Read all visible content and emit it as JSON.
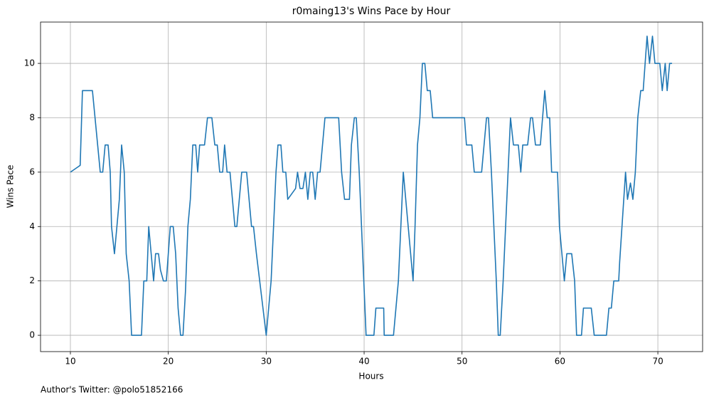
{
  "chart_data": {
    "type": "line",
    "title": "r0maing13's Wins Pace by Hour",
    "xlabel": "Hours",
    "ylabel": "Wins Pace",
    "annotation": "Author's Twitter: @polo51852166",
    "grid": true,
    "xlim": [
      6.95,
      74.57
    ],
    "ylim": [
      -0.6,
      11.52
    ],
    "xticks": [
      10,
      20,
      30,
      40,
      50,
      60,
      70
    ],
    "yticks": [
      0,
      2,
      4,
      6,
      8,
      10
    ],
    "series": [
      {
        "name": "Wins Pace",
        "color": "#1f77b4",
        "x": [
          10,
          10.8,
          11,
          11.23,
          12.25,
          13.05,
          13.3,
          13.55,
          13.85,
          14.07,
          14.2,
          14.5,
          15,
          15.23,
          15.5,
          15.7,
          16,
          16.25,
          17.26,
          17.5,
          17.8,
          17.9,
          18,
          18.5,
          18.7,
          19,
          19.2,
          19.5,
          19.8,
          20,
          20.2,
          20.5,
          20.75,
          21,
          21.25,
          21.5,
          21.75,
          22,
          22.25,
          22.5,
          22.8,
          23,
          23.2,
          23.7,
          24,
          24.45,
          24.75,
          25,
          25.25,
          25.55,
          25.75,
          26,
          26.3,
          26.8,
          27,
          27.5,
          28,
          28.5,
          28.7,
          29,
          30,
          30.5,
          31,
          31.2,
          31.5,
          31.7,
          32,
          32.2,
          33,
          33.2,
          33.45,
          33.75,
          34,
          34.25,
          34.5,
          34.75,
          35,
          35.25,
          35.5,
          36,
          37.4,
          37.7,
          38,
          38.5,
          38.7,
          39,
          39.2,
          39.5,
          40.2,
          41,
          41.2,
          42,
          42.05,
          43,
          43.25,
          43.5,
          44,
          45,
          45.2,
          45.45,
          45.7,
          45.95,
          46.2,
          46.45,
          46.75,
          47,
          50.25,
          50.45,
          51,
          51.25,
          52,
          52.5,
          52.7,
          53,
          53.5,
          53.7,
          53.9,
          54.2,
          54.95,
          55.25,
          55.75,
          56,
          56.2,
          56.7,
          57,
          57.2,
          57.5,
          58,
          58.45,
          58.7,
          58.95,
          59.15,
          59.75,
          59.95,
          60.45,
          60.7,
          61.2,
          61.5,
          61.7,
          62.2,
          62.4,
          63.2,
          63.5,
          64.75,
          65,
          65.25,
          65.5,
          66,
          66.1,
          66.7,
          66.9,
          67.2,
          67.45,
          67.7,
          67.95,
          68.25,
          68.5,
          68.9,
          69.15,
          69.45,
          69.7,
          70.2,
          70.45,
          70.75,
          70.95,
          71.2,
          71.45
        ],
        "values": [
          6,
          6.2,
          6.25,
          9,
          9,
          6,
          6,
          7,
          7,
          6,
          4,
          3,
          5,
          7,
          6,
          3,
          2,
          0,
          0,
          2,
          2,
          3,
          4,
          2,
          3,
          3,
          2.4,
          2,
          2,
          3,
          4,
          4,
          3,
          1,
          0,
          0,
          1.6,
          4,
          5,
          7,
          7,
          6,
          7,
          7,
          8,
          8,
          7,
          7,
          6,
          6,
          7,
          6,
          6,
          4,
          4,
          6,
          6,
          4,
          4,
          3,
          0,
          2,
          6,
          7,
          7,
          6,
          6,
          5,
          5.4,
          6,
          5.4,
          5.4,
          6,
          5,
          6,
          6,
          5,
          6,
          6,
          8,
          8,
          6,
          5,
          5,
          7,
          8,
          8,
          6,
          0,
          0,
          1,
          1,
          0,
          0,
          1,
          2,
          6,
          2,
          4,
          7,
          8,
          10,
          10,
          9,
          9,
          8,
          8,
          7,
          7,
          6,
          6,
          8,
          8,
          6,
          2,
          0,
          0,
          2,
          8,
          7,
          7,
          6,
          7,
          7,
          8,
          8,
          7,
          7,
          9,
          8,
          8,
          6,
          6,
          4,
          2,
          3,
          3,
          2,
          0,
          0,
          1,
          1,
          0,
          0,
          1,
          1,
          2,
          2,
          2.7,
          6,
          5,
          5.6,
          5,
          6,
          8,
          9,
          9,
          11,
          10,
          11,
          10,
          10,
          9,
          10,
          9,
          10,
          10
        ]
      }
    ]
  }
}
